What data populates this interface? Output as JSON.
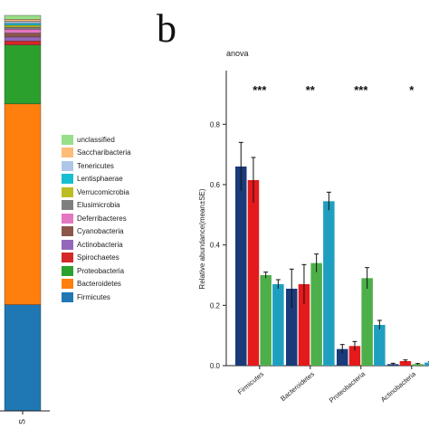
{
  "panel_label": "b",
  "chart_data": [
    {
      "type": "bar",
      "stacked": true,
      "categories": [
        "S"
      ],
      "legend_position": "right",
      "series": [
        {
          "name": "Firmicutes",
          "values": [
            0.27
          ],
          "color": "#1f77b4"
        },
        {
          "name": "Bacteroidetes",
          "values": [
            0.51
          ],
          "color": "#ff7f0e"
        },
        {
          "name": "Proteobacteria",
          "values": [
            0.15
          ],
          "color": "#2ca02c"
        },
        {
          "name": "Spirochaetes",
          "values": [
            0.01
          ],
          "color": "#d62728"
        },
        {
          "name": "Actinobacteria",
          "values": [
            0.01
          ],
          "color": "#9467bd"
        },
        {
          "name": "Cyanobacteria",
          "values": [
            0.01
          ],
          "color": "#8c564b"
        },
        {
          "name": "Deferribacteres",
          "values": [
            0.01
          ],
          "color": "#e377c2"
        },
        {
          "name": "Elusimicrobia",
          "values": [
            0.005
          ],
          "color": "#7f7f7f"
        },
        {
          "name": "Verrucomicrobia",
          "values": [
            0.005
          ],
          "color": "#bcbd22"
        },
        {
          "name": "Lentisphaerae",
          "values": [
            0.005
          ],
          "color": "#17becf"
        },
        {
          "name": "Tenericutes",
          "values": [
            0.005
          ],
          "color": "#aec7e8"
        },
        {
          "name": "Saccharibacteria",
          "values": [
            0.005
          ],
          "color": "#ffbb78"
        },
        {
          "name": "unclassified",
          "values": [
            0.01
          ],
          "color": "#98df8a"
        }
      ]
    },
    {
      "type": "bar",
      "title": "anova",
      "ylabel": "Relative abundance(mean±SE)",
      "ylim": [
        0,
        0.9
      ],
      "yticks": [
        0.0,
        0.2,
        0.4,
        0.6,
        0.8
      ],
      "ytick_labels": [
        "0.0",
        "0.2",
        "0.4",
        "0.6",
        "0.8"
      ],
      "categories": [
        "Firmicutes",
        "Bacteroidetes",
        "Proteobacteria",
        "Actinobacteria"
      ],
      "significance": [
        "***",
        "**",
        "***",
        "*"
      ],
      "series": [
        {
          "color": "#1a3a7a",
          "values": [
            0.66,
            0.255,
            0.055,
            0.005
          ],
          "errors": [
            0.08,
            0.065,
            0.015,
            0.003
          ]
        },
        {
          "color": "#e41a1c",
          "values": [
            0.615,
            0.27,
            0.065,
            0.015
          ],
          "errors": [
            0.075,
            0.065,
            0.015,
            0.004
          ]
        },
        {
          "color": "#4daf4a",
          "values": [
            0.3,
            0.34,
            0.29,
            0.005
          ],
          "errors": [
            0.01,
            0.03,
            0.035,
            0.002
          ]
        },
        {
          "color": "#1f9fc0",
          "values": [
            0.27,
            0.545,
            0.135,
            0.01
          ],
          "errors": [
            0.015,
            0.03,
            0.015,
            0.003
          ]
        }
      ]
    }
  ]
}
